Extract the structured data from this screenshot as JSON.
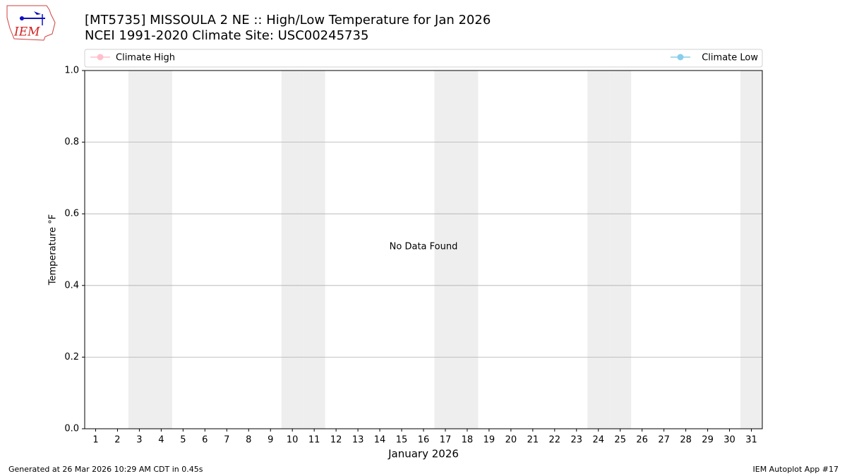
{
  "logo_text": "IEM",
  "chart_data": {
    "type": "line",
    "title": "[MT5735] MISSOULA 2 NE :: High/Low Temperature for Jan 2026",
    "subtitle": "NCEI 1991-2020 Climate Site: USC00245735",
    "y_label": "Temperature °F",
    "x_label": "January 2026",
    "annotation": "No Data Found",
    "x": [
      1,
      2,
      3,
      4,
      5,
      6,
      7,
      8,
      9,
      10,
      11,
      12,
      13,
      14,
      15,
      16,
      17,
      18,
      19,
      20,
      21,
      22,
      23,
      24,
      25,
      26,
      27,
      28,
      29,
      30,
      31
    ],
    "xlim": [
      0.5,
      31.5
    ],
    "xticks": [
      1,
      2,
      3,
      4,
      5,
      6,
      7,
      8,
      9,
      10,
      11,
      12,
      13,
      14,
      15,
      16,
      17,
      18,
      19,
      20,
      21,
      22,
      23,
      24,
      25,
      26,
      27,
      28,
      29,
      30,
      31
    ],
    "shaded_x": [
      3,
      4,
      10,
      11,
      17,
      18,
      24,
      25,
      31
    ],
    "shade_color": "#eeeeee",
    "ylim": [
      0,
      1
    ],
    "yticks": [
      {
        "value": 0,
        "label": "0.0"
      },
      {
        "value": 0.2,
        "label": "0.2"
      },
      {
        "value": 0.4,
        "label": "0.4"
      },
      {
        "value": 0.6,
        "label": "0.6"
      },
      {
        "value": 0.8,
        "label": "0.8"
      },
      {
        "value": 1,
        "label": "1.0"
      }
    ],
    "grid": true,
    "series": [
      {
        "name": "Climate High",
        "color": "#ffc0cb",
        "values": [
          null,
          null,
          null,
          null,
          null,
          null,
          null,
          null,
          null,
          null,
          null,
          null,
          null,
          null,
          null,
          null,
          null,
          null,
          null,
          null,
          null,
          null,
          null,
          null,
          null,
          null,
          null,
          null,
          null,
          null,
          null
        ]
      },
      {
        "name": "Climate Low",
        "color": "#87ceeb",
        "values": [
          null,
          null,
          null,
          null,
          null,
          null,
          null,
          null,
          null,
          null,
          null,
          null,
          null,
          null,
          null,
          null,
          null,
          null,
          null,
          null,
          null,
          null,
          null,
          null,
          null,
          null,
          null,
          null,
          null,
          null,
          null
        ]
      }
    ],
    "footer_left": "Generated at 26 Mar 2026 10:29 AM CDT in 0.45s",
    "footer_right": "IEM Autoplot App #17"
  }
}
